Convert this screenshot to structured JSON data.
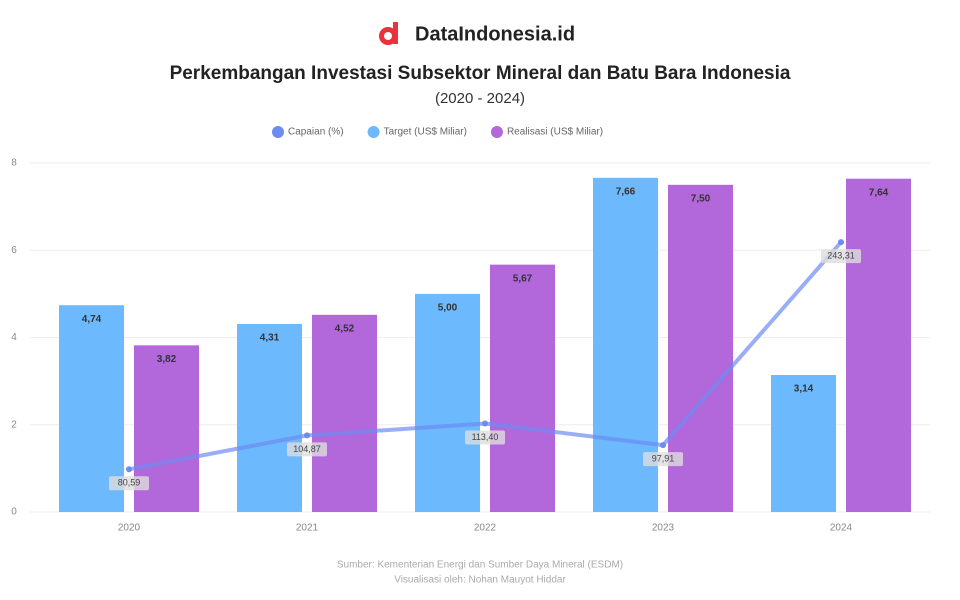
{
  "brand": "DataIndonesia.id",
  "chart_data": {
    "type": "bar",
    "title": "Perkembangan Investasi Subsektor Mineral dan Batu Bara Indonesia",
    "subtitle": "(2020 - 2024)",
    "categories": [
      "2020",
      "2021",
      "2022",
      "2023",
      "2024"
    ],
    "series": [
      {
        "name": "Capaian (%)",
        "type": "line",
        "axis": "y2",
        "color": "#6d8cf2",
        "values": [
          80.59,
          104.87,
          113.4,
          97.91,
          243.31
        ],
        "value_labels": [
          "80,59",
          "104,87",
          "113,40",
          "97,91",
          "243,31"
        ]
      },
      {
        "name": "Target (US$ Miliar)",
        "color": "#6cb9fd",
        "values": [
          4.74,
          4.31,
          5.0,
          7.66,
          3.14
        ],
        "value_labels": [
          "4,74",
          "4,31",
          "5,00",
          "7,66",
          "3,14"
        ]
      },
      {
        "name": "Realisasi (US$ Miliar)",
        "color": "#b267da",
        "values": [
          3.82,
          4.52,
          5.67,
          7.5,
          7.64
        ],
        "value_labels": [
          "3,82",
          "4,52",
          "5,67",
          "7,50",
          "7,64"
        ]
      }
    ],
    "ylim": [
      0,
      8
    ],
    "yticks": [
      0,
      2,
      4,
      6,
      8
    ],
    "y2lim": [
      50,
      300
    ],
    "grid": true,
    "legend": "top",
    "source": "Sumber: Kementerian Energi dan Sumber Daya Mineral (ESDM)",
    "credit": "Visualisasi oleh: Nohan Mauyot Hiddar"
  }
}
